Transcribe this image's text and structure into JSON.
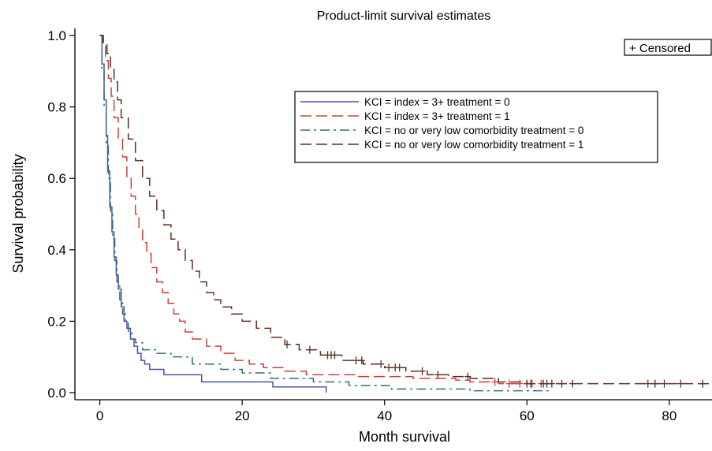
{
  "chart_data": {
    "type": "line",
    "subtype": "step",
    "title": "Product-limit survival estimates",
    "xlabel": "Month  survival",
    "ylabel": "Survival probability",
    "xlim": [
      -3.5,
      86
    ],
    "ylim": [
      -0.02,
      1.02
    ],
    "x_ticks": [
      0,
      20,
      40,
      60,
      80
    ],
    "x_tick_labels": [
      "0",
      "20",
      "40",
      "60",
      "80"
    ],
    "y_ticks": [
      0.0,
      0.2,
      0.4,
      0.6,
      0.8,
      1.0
    ],
    "y_tick_labels": [
      "0.0",
      "0.2",
      "0.4",
      "0.6",
      "0.8",
      "1.0"
    ],
    "grid": false,
    "legend_position": "top-right, inside plot",
    "censor_legend": "+ Censored",
    "series": [
      {
        "name": "KCI = index = 3+ treatment = 0",
        "color": "#4a55a8",
        "dash": "solid",
        "points": [
          [
            0,
            1.0
          ],
          [
            0.3,
            0.92
          ],
          [
            0.6,
            0.82
          ],
          [
            0.9,
            0.72
          ],
          [
            1.1,
            0.62
          ],
          [
            1.4,
            0.52
          ],
          [
            1.7,
            0.45
          ],
          [
            2.0,
            0.38
          ],
          [
            2.3,
            0.33
          ],
          [
            2.6,
            0.29
          ],
          [
            3.0,
            0.24
          ],
          [
            3.4,
            0.2
          ],
          [
            3.8,
            0.18
          ],
          [
            4.3,
            0.15
          ],
          [
            4.8,
            0.13
          ],
          [
            5.3,
            0.11
          ],
          [
            5.8,
            0.09
          ],
          [
            6.3,
            0.08
          ],
          [
            7.0,
            0.065
          ],
          [
            9.0,
            0.05
          ],
          [
            14.3,
            0.03
          ],
          [
            24.3,
            0.016
          ],
          [
            31.8,
            0.0
          ]
        ],
        "censored": []
      },
      {
        "name": "KCI = index = 3+ treatment = 1",
        "color": "#c8423e",
        "dash": "long-dash",
        "points": [
          [
            0,
            1.0
          ],
          [
            0.4,
            0.97
          ],
          [
            0.8,
            0.93
          ],
          [
            1.2,
            0.88
          ],
          [
            1.6,
            0.83
          ],
          [
            2.0,
            0.77
          ],
          [
            2.6,
            0.71
          ],
          [
            3.2,
            0.66
          ],
          [
            3.8,
            0.6
          ],
          [
            4.4,
            0.55
          ],
          [
            5.0,
            0.5
          ],
          [
            5.5,
            0.46
          ],
          [
            6.0,
            0.42
          ],
          [
            6.6,
            0.39
          ],
          [
            7.2,
            0.35
          ],
          [
            8.0,
            0.31
          ],
          [
            8.8,
            0.28
          ],
          [
            9.6,
            0.25
          ],
          [
            10.4,
            0.22
          ],
          [
            11.2,
            0.2
          ],
          [
            12.0,
            0.17
          ],
          [
            13.0,
            0.15
          ],
          [
            15.0,
            0.13
          ],
          [
            17.0,
            0.11
          ],
          [
            19.0,
            0.09
          ],
          [
            21.0,
            0.08
          ],
          [
            23.0,
            0.07
          ],
          [
            26.0,
            0.06
          ],
          [
            29.0,
            0.05
          ],
          [
            36.0,
            0.045
          ],
          [
            44.0,
            0.04
          ],
          [
            50.0,
            0.035
          ],
          [
            52.0,
            0.03
          ],
          [
            56.0,
            0.025
          ],
          [
            62.5,
            0.025
          ]
        ],
        "censored": [
          55.5,
          57.5,
          59.0,
          60.5,
          62.0
        ]
      },
      {
        "name": "KCI = no or very low comorbidity treatment = 0",
        "color": "#2e7070",
        "dash": "dash-dot",
        "points": [
          [
            0,
            1.0
          ],
          [
            0.3,
            0.9
          ],
          [
            0.6,
            0.8
          ],
          [
            0.9,
            0.7
          ],
          [
            1.2,
            0.6
          ],
          [
            1.5,
            0.5
          ],
          [
            1.8,
            0.43
          ],
          [
            2.1,
            0.37
          ],
          [
            2.4,
            0.31
          ],
          [
            2.8,
            0.26
          ],
          [
            3.2,
            0.22
          ],
          [
            3.6,
            0.2
          ],
          [
            4.0,
            0.17
          ],
          [
            4.5,
            0.15
          ],
          [
            5.0,
            0.14
          ],
          [
            6.0,
            0.12
          ],
          [
            8.0,
            0.11
          ],
          [
            10.0,
            0.1
          ],
          [
            13.0,
            0.08
          ],
          [
            17.0,
            0.065
          ],
          [
            20.0,
            0.055
          ],
          [
            24.0,
            0.04
          ],
          [
            30.0,
            0.03
          ],
          [
            35.0,
            0.02
          ],
          [
            41.0,
            0.01
          ],
          [
            50.0,
            0.01
          ],
          [
            52.0,
            0.005
          ],
          [
            63.5,
            0.005
          ]
        ],
        "censored": []
      },
      {
        "name": "KCI = no or very low comorbidity treatment = 1",
        "color": "#5c2f24",
        "dash": "long-dash",
        "points": [
          [
            0,
            1.0
          ],
          [
            0.5,
            0.98
          ],
          [
            1.0,
            0.95
          ],
          [
            1.5,
            0.91
          ],
          [
            2.0,
            0.87
          ],
          [
            2.5,
            0.82
          ],
          [
            3.0,
            0.77
          ],
          [
            4.0,
            0.71
          ],
          [
            5.0,
            0.65
          ],
          [
            6.0,
            0.6
          ],
          [
            7.0,
            0.55
          ],
          [
            8.0,
            0.51
          ],
          [
            9.0,
            0.47
          ],
          [
            10.0,
            0.43
          ],
          [
            11.0,
            0.4
          ],
          [
            12.0,
            0.37
          ],
          [
            13.0,
            0.34
          ],
          [
            14.0,
            0.31
          ],
          [
            15.0,
            0.28
          ],
          [
            16.0,
            0.26
          ],
          [
            17.0,
            0.24
          ],
          [
            18.5,
            0.22
          ],
          [
            20.0,
            0.2
          ],
          [
            22.0,
            0.18
          ],
          [
            24.0,
            0.155
          ],
          [
            26.0,
            0.135
          ],
          [
            28.0,
            0.12
          ],
          [
            31.0,
            0.105
          ],
          [
            34.0,
            0.09
          ],
          [
            37.0,
            0.08
          ],
          [
            40.0,
            0.07
          ],
          [
            43.0,
            0.06
          ],
          [
            46.0,
            0.05
          ],
          [
            49.0,
            0.045
          ],
          [
            52.0,
            0.04
          ],
          [
            56.0,
            0.03
          ],
          [
            60.0,
            0.025
          ],
          [
            86.0,
            0.025
          ]
        ],
        "censored": [
          26.3,
          29.5,
          32.0,
          32.5,
          33.0,
          36.0,
          36.8,
          39.5,
          40.6,
          41.5,
          42.1,
          45.3,
          47.5,
          51.7,
          60.0,
          60.7,
          62.3,
          62.8,
          63.5,
          64.9,
          66.4,
          77.0,
          78.0,
          79.3,
          81.6,
          84.7
        ]
      }
    ]
  }
}
